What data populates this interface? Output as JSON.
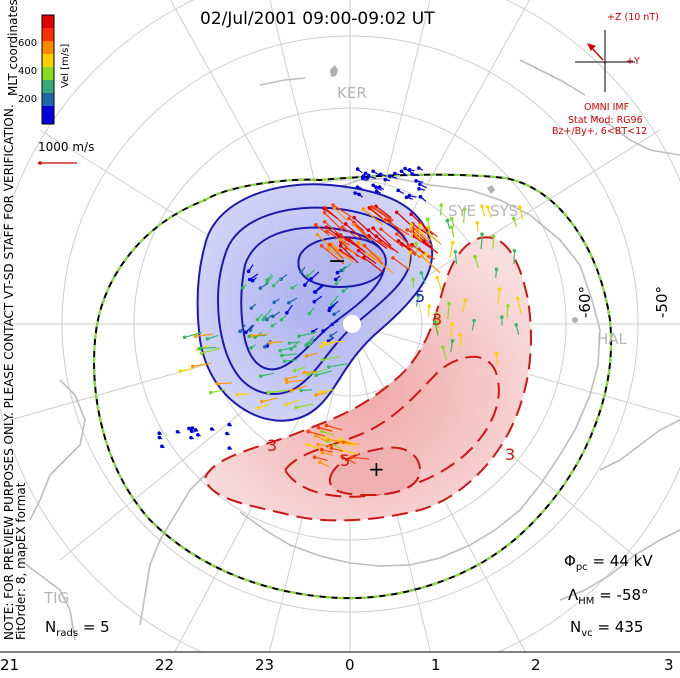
{
  "title": "02/Jul/2001  09:00-09:02  UT",
  "side_text": {
    "line1": "NOTE: FOR PREVIEW PURPOSES ONLY. PLEASE CONTACT VT-SD STAFF FOR VERIFICATION.",
    "line2": "FitOrder: 8, mapEX format"
  },
  "coordinates_label": "MLT coordinates",
  "colorbar": {
    "label": "Vel [m/s]",
    "ticks": [
      "600",
      "400",
      "200"
    ],
    "colors": [
      "#e00000",
      "#ff4000",
      "#ff9900",
      "#ffd000",
      "#88dd22",
      "#33bb66",
      "#2266aa",
      "#0000dd"
    ]
  },
  "scale_vector": {
    "label": "1000 m/s",
    "color": "#d40000"
  },
  "imf": {
    "z_label": "+Z (10 nT)",
    "y_label": "+Y",
    "source": "OMNI IMF",
    "model_line1": "Stat Mod: RG96",
    "model_line2": "Bz+/By+, 6<BT<12",
    "color": "#d40000"
  },
  "stats": {
    "phi_symbol": "Φ",
    "phi_sub": "pc",
    "phi_value": "= 44 kV",
    "lambda_symbol": "Λ",
    "lambda_sub": "HM",
    "lambda_value": "= -58°",
    "nvc_symbol": "N",
    "nvc_sub": "vc",
    "nvc_value": "= 435",
    "nrads_symbol": "N",
    "nrads_sub": "rads",
    "nrads_value": "= 5"
  },
  "mlt_ticks": [
    "21",
    "22",
    "23",
    "0",
    "1",
    "2",
    "3"
  ],
  "lat_labels": [
    "-60°",
    "-50°"
  ],
  "stations": [
    "KER",
    "SYE",
    "SYS",
    "HAL",
    "TIG"
  ],
  "contour_labels": {
    "min_sign": "−",
    "max_sign": "+",
    "neg_labels": [
      "5"
    ],
    "pos_labels": [
      "3",
      "5",
      "3",
      "3"
    ]
  },
  "colors": {
    "negative_contour": "#1a1ab0",
    "negative_fill": "#cfd0f6",
    "positive_contour": "#d11515",
    "positive_fill": "#f7d6d6",
    "grid": "#c8c8c8",
    "coast": "#c0c0c0"
  }
}
